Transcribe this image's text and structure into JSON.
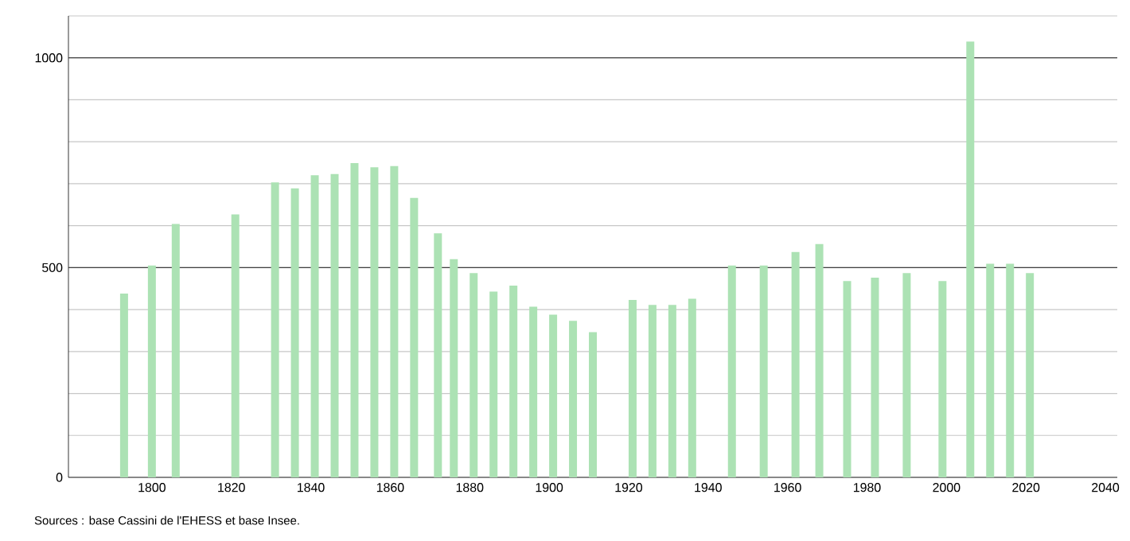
{
  "chart_data": {
    "type": "bar",
    "color": "#ace2b4",
    "x": [
      1793,
      1800,
      1806,
      1821,
      1831,
      1836,
      1841,
      1846,
      1851,
      1856,
      1861,
      1866,
      1872,
      1876,
      1881,
      1886,
      1891,
      1896,
      1901,
      1906,
      1911,
      1921,
      1926,
      1931,
      1936,
      1946,
      1954,
      1962,
      1968,
      1975,
      1982,
      1990,
      1999,
      2006,
      2011,
      2016,
      2021
    ],
    "values": [
      438,
      505,
      604,
      627,
      703,
      689,
      720,
      723,
      749,
      739,
      742,
      666,
      582,
      520,
      487,
      443,
      457,
      407,
      388,
      373,
      346,
      423,
      411,
      411,
      426,
      505,
      505,
      537,
      556,
      468,
      476,
      487,
      468,
      1039,
      509,
      509,
      487
    ],
    "xlim": [
      1779,
      2043
    ],
    "xticks": [
      1800,
      1820,
      1840,
      1860,
      1880,
      1900,
      1920,
      1940,
      1960,
      1980,
      2000,
      2020,
      2040
    ],
    "ylim": [
      0,
      1100
    ],
    "yticks": [
      0,
      {
        "value": 100,
        "label": null
      },
      {
        "value": 200,
        "label": null
      },
      {
        "value": 300,
        "label": null
      },
      {
        "value": 400,
        "label": null
      },
      500,
      {
        "value": 600,
        "label": null
      },
      {
        "value": 700,
        "label": null
      },
      {
        "value": 800,
        "label": null
      },
      {
        "value": 900,
        "label": null
      },
      1000,
      {
        "value": 1100,
        "label": null
      }
    ],
    "grid": "y",
    "annotations": [
      "Sources : base Cassini de l'EHESS et base Insee."
    ]
  }
}
